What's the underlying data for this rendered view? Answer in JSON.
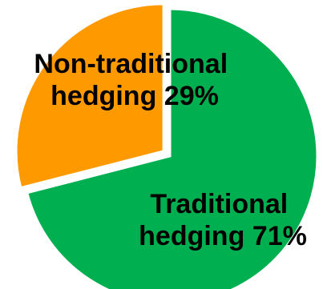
{
  "chart_data": {
    "type": "pie",
    "title": "",
    "slices": [
      {
        "label_lines": [
          "Traditional",
          "hedging 71%"
        ],
        "value": 71,
        "color": "#00b050",
        "exploded": false
      },
      {
        "label_lines": [
          "Non-traditional",
          "hedging 29%"
        ],
        "value": 29,
        "color": "#ff9900",
        "exploded": true
      }
    ],
    "legend": "none"
  }
}
